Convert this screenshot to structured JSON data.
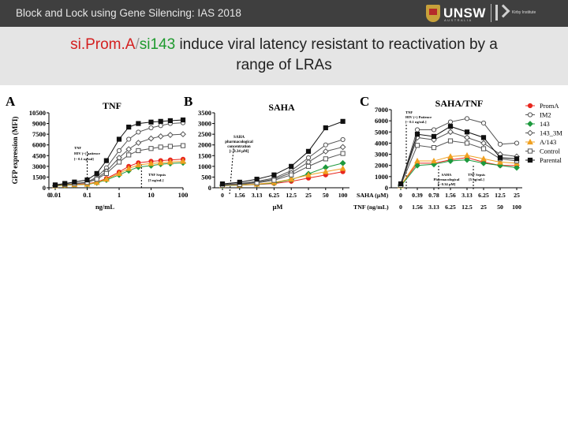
{
  "header": {
    "bar_title": "Block and Lock using Gene Silencing: IAS 2018",
    "logo_text": "UNSW",
    "logo_subtext": "AUSTRALIA",
    "partner_logo_text": "Kirby Institute"
  },
  "slide": {
    "title_part1": "si.Prom.A",
    "title_slash": "/",
    "title_part2": "si143",
    "title_rest_line1": " induce viral latency resistant to reactivation by a",
    "title_line2": "range of LRAs"
  },
  "colors": {
    "PromA": "#e8271e",
    "IM2": "#555555",
    "143": "#1e9a3e",
    "143_3M": "#555555",
    "A/143": "#f0a020",
    "Control": "#555555",
    "Parental": "#111111"
  },
  "legend": [
    "PromA",
    "IM2",
    "143",
    "143_3M",
    "A/143",
    "Control",
    "Parental"
  ],
  "chart_data": [
    {
      "type": "line",
      "panel": "A",
      "title": "TNF",
      "ylabel": "GFP expression (MFI)",
      "xlabel": "ng/mL",
      "x_scale": "log",
      "x_ticks": [
        "0",
        "0.01",
        "0.1",
        "1",
        "10",
        "100"
      ],
      "y_ticks": [
        "0",
        "1500",
        "3000",
        "4500",
        "6000",
        "7500",
        "9000",
        "10500"
      ],
      "ylim": [
        0,
        10500
      ],
      "annotations": [
        "TNF",
        "HIV (+) patience",
        "[~ 0.1 ng/ml]",
        "TNF Sepsis",
        "[5 ng/mL]"
      ],
      "x": [
        0.01,
        0.02,
        0.04,
        0.1,
        0.2,
        0.4,
        1,
        2,
        4,
        10,
        20,
        40,
        100
      ],
      "series": [
        {
          "name": "PromA",
          "values": [
            300,
            400,
            450,
            550,
            800,
            1300,
            2200,
            3000,
            3500,
            3700,
            3800,
            3900,
            4000
          ]
        },
        {
          "name": "IM2",
          "values": [
            350,
            500,
            600,
            800,
            1500,
            2800,
            5200,
            6800,
            7800,
            8400,
            8700,
            9000,
            9100
          ]
        },
        {
          "name": "143",
          "values": [
            250,
            350,
            400,
            450,
            700,
            1100,
            1800,
            2400,
            2900,
            3100,
            3300,
            3400,
            3500
          ]
        },
        {
          "name": "143_3M",
          "values": [
            300,
            450,
            550,
            700,
            1300,
            2300,
            4200,
            5400,
            6300,
            6900,
            7200,
            7400,
            7500
          ]
        },
        {
          "name": "A/143",
          "values": [
            280,
            380,
            420,
            500,
            750,
            1200,
            2000,
            2700,
            3200,
            3400,
            3500,
            3600,
            3700
          ]
        },
        {
          "name": "Control",
          "values": [
            330,
            480,
            600,
            750,
            1200,
            2000,
            3600,
            4600,
            5200,
            5500,
            5700,
            5800,
            5900
          ]
        },
        {
          "name": "Parental",
          "values": [
            400,
            600,
            800,
            1100,
            2000,
            3800,
            6800,
            8500,
            9000,
            9200,
            9300,
            9400,
            9500
          ]
        }
      ]
    },
    {
      "type": "line",
      "panel": "B",
      "title": "SAHA",
      "xlabel": "µM",
      "categories": [
        "0",
        "1.56",
        "3.13",
        "6.25",
        "12.5",
        "25",
        "50",
        "100"
      ],
      "y_ticks": [
        "0",
        "500",
        "1000",
        "1500",
        "2000",
        "2500",
        "3000",
        "3500"
      ],
      "ylim": [
        0,
        3500
      ],
      "annotations": [
        "SAHA",
        "pharmacological",
        "concentration",
        "[~ 0.34 µM]"
      ],
      "series": [
        {
          "name": "PromA",
          "values": [
            100,
            120,
            150,
            200,
            300,
            450,
            600,
            750
          ]
        },
        {
          "name": "IM2",
          "values": [
            150,
            200,
            300,
            450,
            800,
            1400,
            2000,
            2250
          ]
        },
        {
          "name": "143",
          "values": [
            100,
            120,
            160,
            220,
            380,
            650,
            950,
            1150
          ]
        },
        {
          "name": "143_3M",
          "values": [
            130,
            180,
            260,
            400,
            700,
            1200,
            1700,
            1900
          ]
        },
        {
          "name": "A/143",
          "values": [
            110,
            130,
            170,
            250,
            400,
            600,
            750,
            900
          ]
        },
        {
          "name": "Control",
          "values": [
            120,
            160,
            230,
            350,
            600,
            1000,
            1350,
            1600
          ]
        },
        {
          "name": "Parental",
          "values": [
            180,
            260,
            400,
            600,
            1000,
            1700,
            2800,
            3100
          ]
        }
      ]
    },
    {
      "type": "line",
      "panel": "C",
      "title": "SAHA/TNF",
      "x_row1_label": "SAHA (µM)",
      "x_row1_ticks": [
        "0",
        "0.39",
        "0.78",
        "1.56",
        "3.13",
        "6.25",
        "12.5",
        "25"
      ],
      "x_row2_label": "TNF (ng/mL)",
      "x_row2_ticks": [
        "0",
        "1.56",
        "3.13",
        "6.25",
        "12.5",
        "25",
        "50",
        "100"
      ],
      "y_ticks": [
        "0",
        "1000",
        "2000",
        "3000",
        "4000",
        "5000",
        "6000",
        "7000"
      ],
      "ylim": [
        0,
        7000
      ],
      "annotations": [
        "TNF",
        "HIV (+) Patience",
        "[~ 0.1 ng/mL]",
        "SAHA",
        "Pharmacological",
        "[~ 0.34 µM]",
        "TNF Sepsis",
        "[5 ng/mL]"
      ],
      "series": [
        {
          "name": "PromA",
          "values": [
            200,
            2200,
            2200,
            2500,
            2700,
            2300,
            2000,
            2000
          ]
        },
        {
          "name": "IM2",
          "values": [
            300,
            5200,
            5200,
            5900,
            6200,
            5800,
            3900,
            4000
          ]
        },
        {
          "name": "143",
          "values": [
            150,
            2000,
            2100,
            2400,
            2500,
            2200,
            2000,
            1800
          ]
        },
        {
          "name": "143_3M",
          "values": [
            250,
            4500,
            4300,
            5000,
            4500,
            4000,
            3000,
            2800
          ]
        },
        {
          "name": "A/143",
          "values": [
            180,
            2400,
            2400,
            2800,
            2900,
            2600,
            2300,
            2200
          ]
        },
        {
          "name": "Control",
          "values": [
            220,
            3800,
            3600,
            4200,
            4000,
            3500,
            2600,
            2400
          ]
        },
        {
          "name": "Parental",
          "values": [
            350,
            4800,
            4600,
            5500,
            5000,
            4500,
            2700,
            2600
          ]
        }
      ]
    }
  ]
}
